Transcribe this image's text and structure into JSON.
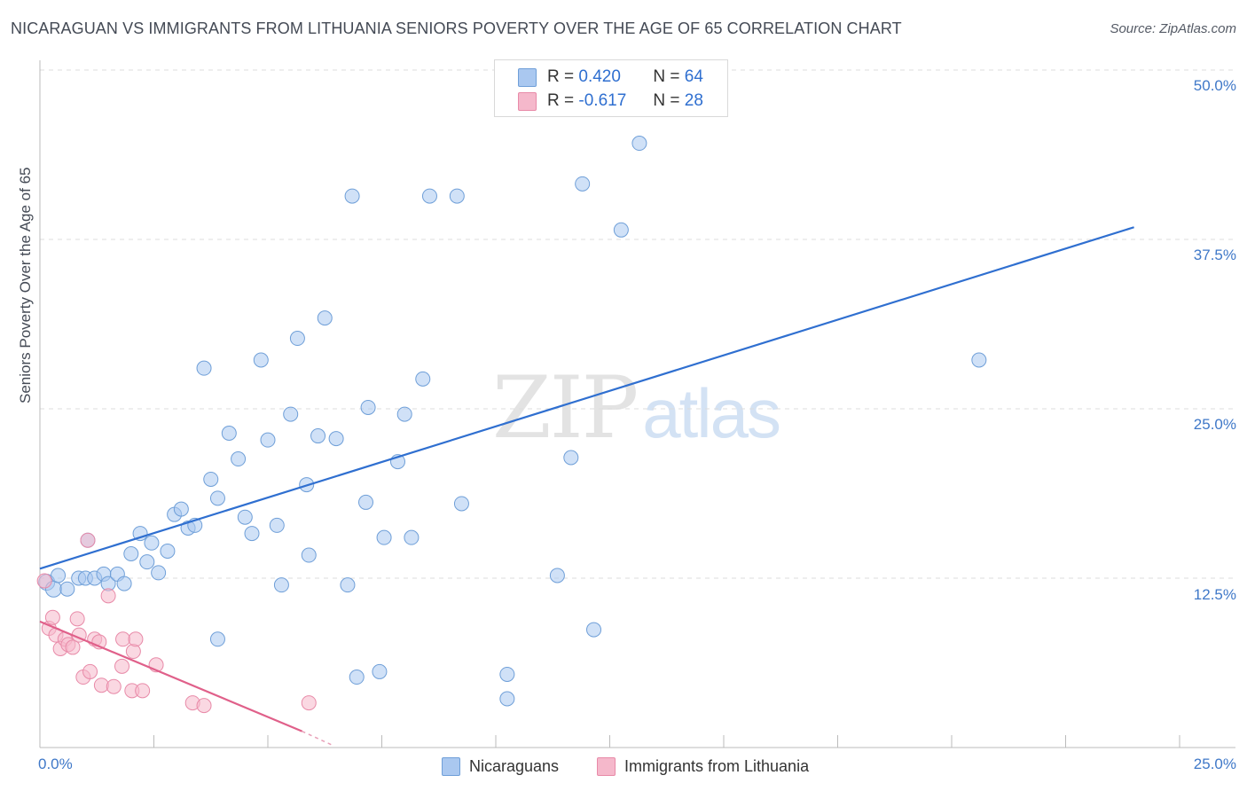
{
  "header": {
    "title": "NICARAGUAN VS IMMIGRANTS FROM LITHUANIA SENIORS POVERTY OVER THE AGE OF 65 CORRELATION CHART",
    "source": "Source: ZipAtlas.com"
  },
  "watermark": {
    "zip": "ZIP",
    "atlas": "atlas"
  },
  "legend": {
    "r_label": "R =",
    "n_label": "N =",
    "series1": {
      "r": "0.420",
      "n": "64",
      "color": "#aac8f0"
    },
    "series2": {
      "r": "-0.617",
      "n": "28",
      "color": "#f5b8cb"
    }
  },
  "bottom_legend": {
    "series1": "Nicaraguans",
    "series2": "Immigrants from Lithuania"
  },
  "chart_data": {
    "type": "scatter",
    "title": "NICARAGUAN VS IMMIGRANTS FROM LITHUANIA SENIORS POVERTY OVER THE AGE OF 65 CORRELATION CHART",
    "xlabel": "",
    "ylabel": "Seniors Poverty Over the Age of 65",
    "xlim": [
      0,
      25
    ],
    "ylim": [
      0,
      50
    ],
    "x_tick_labels": [
      "0.0%",
      "25.0%"
    ],
    "y_ticks": [
      12.5,
      25.0,
      37.5,
      50.0
    ],
    "y_tick_labels": [
      "12.5%",
      "25.0%",
      "37.5%",
      "50.0%"
    ],
    "grid": true,
    "legend_position": "top-center",
    "series": [
      {
        "name": "Nicaraguans",
        "color": "#aac8f0",
        "stroke": "#6f9fd8",
        "trend": {
          "x0": 0,
          "y0": 13.2,
          "x1": 24.0,
          "y1": 38.4,
          "color": "#2f6fd0"
        },
        "points": [
          [
            0.15,
            12.2,
            9
          ],
          [
            0.3,
            11.7,
            9
          ],
          [
            0.4,
            12.7,
            8
          ],
          [
            0.6,
            11.7,
            8
          ],
          [
            0.85,
            12.5,
            8
          ],
          [
            1.0,
            12.5,
            8
          ],
          [
            1.2,
            12.5,
            8
          ],
          [
            1.4,
            12.8,
            8
          ],
          [
            1.5,
            12.1,
            8
          ],
          [
            1.7,
            12.8,
            8
          ],
          [
            1.85,
            12.1,
            8
          ],
          [
            2.0,
            14.3,
            8
          ],
          [
            2.2,
            15.8,
            8
          ],
          [
            2.35,
            13.7,
            8
          ],
          [
            2.45,
            15.1,
            8
          ],
          [
            2.6,
            12.9,
            8
          ],
          [
            2.8,
            14.5,
            8
          ],
          [
            2.95,
            17.2,
            8
          ],
          [
            3.1,
            17.6,
            8
          ],
          [
            3.25,
            16.2,
            8
          ],
          [
            3.4,
            16.4,
            8
          ],
          [
            3.6,
            28.0,
            8
          ],
          [
            3.75,
            19.8,
            8
          ],
          [
            3.9,
            18.4,
            8
          ],
          [
            4.15,
            23.2,
            8
          ],
          [
            4.35,
            21.3,
            8
          ],
          [
            4.5,
            17.0,
            8
          ],
          [
            4.65,
            15.8,
            8
          ],
          [
            4.85,
            28.6,
            8
          ],
          [
            5.0,
            22.7,
            8
          ],
          [
            5.2,
            16.4,
            8
          ],
          [
            5.3,
            12.0,
            8
          ],
          [
            5.5,
            24.6,
            8
          ],
          [
            5.65,
            30.2,
            8
          ],
          [
            5.85,
            19.4,
            8
          ],
          [
            5.9,
            14.2,
            8
          ],
          [
            6.1,
            23.0,
            8
          ],
          [
            6.25,
            31.7,
            8
          ],
          [
            6.5,
            22.8,
            8
          ],
          [
            6.75,
            12.0,
            8
          ],
          [
            7.15,
            18.1,
            8
          ],
          [
            7.2,
            25.1,
            8
          ],
          [
            7.55,
            15.5,
            8
          ],
          [
            7.85,
            21.1,
            8
          ],
          [
            8.0,
            24.6,
            8
          ],
          [
            8.15,
            15.5,
            8
          ],
          [
            8.4,
            27.2,
            8
          ],
          [
            9.25,
            18.0,
            8
          ],
          [
            11.35,
            12.7,
            8
          ],
          [
            11.65,
            21.4,
            8
          ],
          [
            12.15,
            8.7,
            8
          ],
          [
            12.75,
            38.2,
            8
          ],
          [
            13.15,
            44.6,
            8
          ],
          [
            11.9,
            41.6,
            8
          ],
          [
            9.15,
            40.7,
            8
          ],
          [
            8.55,
            40.7,
            8
          ],
          [
            6.85,
            40.7,
            8
          ],
          [
            20.6,
            28.6,
            8
          ],
          [
            3.9,
            8.0,
            8
          ],
          [
            6.95,
            5.2,
            8
          ],
          [
            7.45,
            5.6,
            8
          ],
          [
            10.25,
            5.4,
            8
          ],
          [
            10.25,
            3.6,
            8
          ],
          [
            1.05,
            15.3,
            8
          ]
        ]
      },
      {
        "name": "Immigrants from Lithuania",
        "color": "#f5b8cb",
        "stroke": "#e88aa8",
        "trend": {
          "x0": 0,
          "y0": 9.3,
          "x1": 5.75,
          "y1": 1.2,
          "color": "#e0608a"
        },
        "trend_dash": {
          "x0": 5.75,
          "y0": 1.2,
          "x1": 6.4,
          "y1": 0.2
        },
        "points": [
          [
            0.1,
            12.3,
            8
          ],
          [
            0.2,
            8.8,
            8
          ],
          [
            0.28,
            9.6,
            8
          ],
          [
            0.35,
            8.3,
            8
          ],
          [
            0.45,
            7.3,
            8
          ],
          [
            0.55,
            8.0,
            8
          ],
          [
            0.62,
            7.6,
            8
          ],
          [
            0.72,
            7.4,
            8
          ],
          [
            0.82,
            9.5,
            8
          ],
          [
            0.86,
            8.3,
            8
          ],
          [
            0.95,
            5.2,
            8
          ],
          [
            1.05,
            15.3,
            8
          ],
          [
            1.1,
            5.6,
            8
          ],
          [
            1.2,
            8.0,
            8
          ],
          [
            1.3,
            7.8,
            8
          ],
          [
            1.35,
            4.6,
            8
          ],
          [
            1.5,
            11.2,
            8
          ],
          [
            1.62,
            4.5,
            8
          ],
          [
            1.8,
            6.0,
            8
          ],
          [
            1.82,
            8.0,
            8
          ],
          [
            2.02,
            4.2,
            8
          ],
          [
            2.05,
            7.1,
            8
          ],
          [
            2.1,
            8.0,
            8
          ],
          [
            2.25,
            4.2,
            8
          ],
          [
            2.55,
            6.1,
            8
          ],
          [
            3.35,
            3.3,
            8
          ],
          [
            3.6,
            3.1,
            8
          ],
          [
            5.9,
            3.3,
            8
          ]
        ]
      }
    ]
  }
}
